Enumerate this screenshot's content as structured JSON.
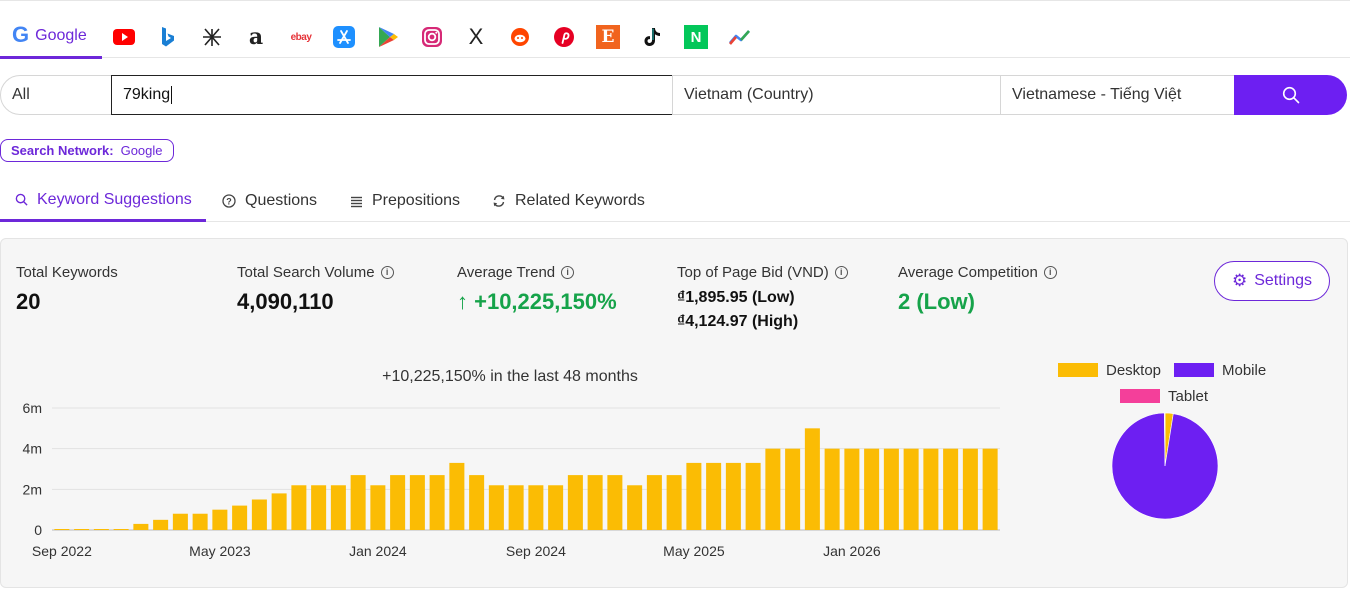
{
  "engines": {
    "google_label": "Google",
    "google_glyph": "G",
    "icons": [
      "youtube-icon",
      "bing-icon",
      "baidu-icon",
      "amazon-icon",
      "ebay-icon",
      "app-store-icon",
      "google-play-icon",
      "instagram-icon",
      "x-icon",
      "reddit-icon",
      "pinterest-icon",
      "etsy-icon",
      "tiktok-icon",
      "naver-icon",
      "trends-icon"
    ],
    "ebay_text": "ebay",
    "etsy_text": "E",
    "naver_text": "N",
    "x_text": "X",
    "amazon_text": "a"
  },
  "search": {
    "scope": "All",
    "query": "79king",
    "country": "Vietnam (Country)",
    "language": "Vietnamese - Tiếng Việt"
  },
  "network": {
    "label": "Search Network:",
    "value": "Google"
  },
  "tabs": [
    {
      "label": "Keyword Suggestions"
    },
    {
      "label": "Questions"
    },
    {
      "label": "Prepositions"
    },
    {
      "label": "Related Keywords"
    }
  ],
  "stats": {
    "total_keywords_label": "Total Keywords",
    "total_keywords": "20",
    "volume_label": "Total Search Volume",
    "volume": "4,090,110",
    "trend_label": "Average Trend",
    "trend": "↑ +10,225,150%",
    "bid_label": "Top of Page Bid (VND)",
    "bid_low": "₫1,895.95 (Low)",
    "bid_high": "₫4,124.97 (High)",
    "competition_label": "Average Competition",
    "competition": "2 (Low)",
    "settings_label": "Settings"
  },
  "colors": {
    "accent": "#6d28d9",
    "button": "#6d1ff2",
    "bar": "#fbbc04",
    "green": "#16a34a",
    "tablet": "#f43f9a"
  },
  "chart_data": [
    {
      "type": "bar",
      "title": "+10,225,150% in the last 48 months",
      "xlabel": "",
      "ylabel": "",
      "ylim": [
        0,
        6000000
      ],
      "y_ticks": [
        "0",
        "2m",
        "4m",
        "6m"
      ],
      "x_tick_labels": [
        "Sep 2022",
        "May 2023",
        "Jan 2024",
        "Sep 2024",
        "May 2025",
        "Jan 2026"
      ],
      "categories": [
        "Sep 2022",
        "Oct 2022",
        "Nov 2022",
        "Dec 2022",
        "Jan 2023",
        "Feb 2023",
        "Mar 2023",
        "Apr 2023",
        "May 2023",
        "Jun 2023",
        "Jul 2023",
        "Aug 2023",
        "Sep 2023",
        "Oct 2023",
        "Nov 2023",
        "Dec 2023",
        "Jan 2024",
        "Feb 2024",
        "Mar 2024",
        "Apr 2024",
        "May 2024",
        "Jun 2024",
        "Jul 2024",
        "Aug 2024",
        "Sep 2024",
        "Oct 2024",
        "Nov 2024",
        "Dec 2024",
        "Jan 2025",
        "Feb 2025",
        "Mar 2025",
        "Apr 2025",
        "May 2025",
        "Jun 2025",
        "Jul 2025",
        "Aug 2025",
        "Sep 2025",
        "Oct 2025",
        "Nov 2025",
        "Dec 2025",
        "Jan 2026",
        "Feb 2026",
        "Mar 2026",
        "Apr 2026",
        "May 2026",
        "Jun 2026",
        "Jul 2026",
        "Aug 2026"
      ],
      "values": [
        40,
        40,
        40,
        40,
        300000,
        500000,
        800000,
        800000,
        1000000,
        1200000,
        1500000,
        1800000,
        2200000,
        2200000,
        2200000,
        2700000,
        2200000,
        2700000,
        2700000,
        2700000,
        3300000,
        2700000,
        2200000,
        2200000,
        2200000,
        2200000,
        2700000,
        2700000,
        2700000,
        2200000,
        2700000,
        2700000,
        3300000,
        3300000,
        3300000,
        3300000,
        4000000,
        4000000,
        5000000,
        4000000,
        4000000,
        4000000,
        4000000,
        4000000,
        4000000,
        4000000,
        4000000,
        4000000
      ],
      "grid": true
    },
    {
      "type": "pie",
      "legend": [
        "Desktop",
        "Mobile",
        "Tablet"
      ],
      "legend_position": "top",
      "values": [
        2.5,
        97.3,
        0.2
      ],
      "colors": [
        "#fbbc04",
        "#6d1ff2",
        "#f43f9a"
      ]
    }
  ]
}
